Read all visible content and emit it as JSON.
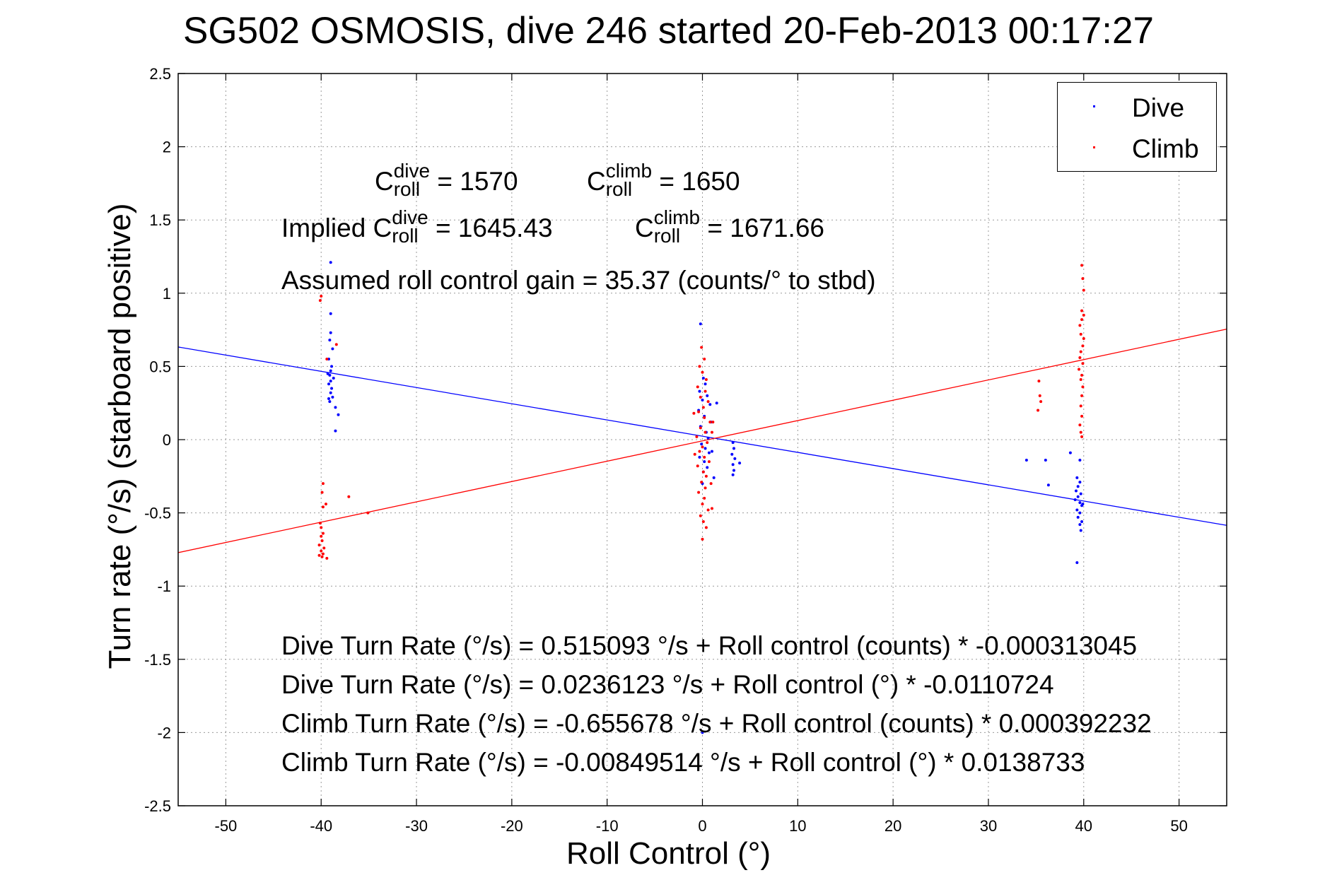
{
  "title": "SG502 OSMOSIS, dive 246 started 20-Feb-2013 00:17:27",
  "chart_data": {
    "type": "scatter",
    "xlabel": "Roll Control (°)",
    "ylabel": "Turn rate (°/s) (starboard positive)",
    "xlim": [
      -55,
      55
    ],
    "ylim": [
      -2.5,
      2.5
    ],
    "xticks": [
      -50,
      -40,
      -30,
      -20,
      -10,
      0,
      10,
      20,
      30,
      40,
      50
    ],
    "yticks": [
      -2.5,
      -2,
      -1.5,
      -1,
      -0.5,
      0,
      0.5,
      1,
      1.5,
      2,
      2.5
    ],
    "xtick_labels": [
      "-50",
      "-40",
      "-30",
      "-20",
      "-10",
      "0",
      "10",
      "20",
      "30",
      "40",
      "50"
    ],
    "ytick_labels": [
      "-2.5",
      "-2",
      "-1.5",
      "-1",
      "-0.5",
      "0",
      "0.5",
      "1",
      "1.5",
      "2",
      "2.5"
    ],
    "grid": true,
    "legend_position": "top-right",
    "series": [
      {
        "name": "Dive",
        "color": "#0000ff",
        "points": [
          [
            -39.0,
            1.21
          ],
          [
            -39.0,
            0.86
          ],
          [
            -39.0,
            0.73
          ],
          [
            -39.1,
            0.68
          ],
          [
            -38.8,
            0.62
          ],
          [
            -39.2,
            0.55
          ],
          [
            -38.9,
            0.5
          ],
          [
            -39.0,
            0.47
          ],
          [
            -39.1,
            0.44
          ],
          [
            -38.7,
            0.42
          ],
          [
            -39.0,
            0.4
          ],
          [
            -39.2,
            0.38
          ],
          [
            -38.9,
            0.35
          ],
          [
            -39.0,
            0.32
          ],
          [
            -38.8,
            0.29
          ],
          [
            -39.1,
            0.26
          ],
          [
            -38.5,
            0.22
          ],
          [
            -38.2,
            0.17
          ],
          [
            -38.5,
            0.06
          ],
          [
            -39.3,
            0.45
          ],
          [
            -39.2,
            0.28
          ],
          [
            -0.2,
            0.79
          ],
          [
            0.1,
            0.42
          ],
          [
            0.3,
            0.38
          ],
          [
            -0.3,
            0.33
          ],
          [
            0.5,
            0.3
          ],
          [
            0.0,
            0.27
          ],
          [
            0.8,
            0.24
          ],
          [
            -0.4,
            0.2
          ],
          [
            0.2,
            0.16
          ],
          [
            0.9,
            0.12
          ],
          [
            -0.2,
            0.09
          ],
          [
            0.4,
            0.05
          ],
          [
            0.6,
            0.01
          ],
          [
            -0.1,
            -0.03
          ],
          [
            0.3,
            -0.06
          ],
          [
            0.7,
            -0.09
          ],
          [
            -0.3,
            -0.12
          ],
          [
            0.2,
            -0.15
          ],
          [
            0.5,
            -0.19
          ],
          [
            0.1,
            -0.22
          ],
          [
            1.2,
            -0.26
          ],
          [
            0.0,
            -0.3
          ],
          [
            1.5,
            0.25
          ],
          [
            1.0,
            -0.08
          ],
          [
            3.2,
            -0.02
          ],
          [
            3.3,
            -0.06
          ],
          [
            3.1,
            -0.1
          ],
          [
            3.4,
            -0.13
          ],
          [
            3.2,
            -0.17
          ],
          [
            3.3,
            -0.21
          ],
          [
            3.2,
            -0.24
          ],
          [
            3.9,
            -0.16
          ],
          [
            0.0,
            -2.0
          ],
          [
            34.0,
            -0.14
          ],
          [
            36.0,
            -0.14
          ],
          [
            36.3,
            -0.31
          ],
          [
            38.6,
            -0.09
          ],
          [
            39.6,
            -0.14
          ],
          [
            39.3,
            -0.26
          ],
          [
            39.6,
            -0.29
          ],
          [
            39.4,
            -0.32
          ],
          [
            39.2,
            -0.35
          ],
          [
            39.7,
            -0.37
          ],
          [
            39.4,
            -0.39
          ],
          [
            39.1,
            -0.41
          ],
          [
            39.6,
            -0.43
          ],
          [
            39.8,
            -0.45
          ],
          [
            39.3,
            -0.48
          ],
          [
            39.6,
            -0.5
          ],
          [
            39.4,
            -0.53
          ],
          [
            39.8,
            -0.56
          ],
          [
            39.6,
            -0.58
          ],
          [
            39.7,
            -0.62
          ],
          [
            39.3,
            -0.84
          ],
          [
            39.9,
            -0.44
          ]
        ]
      },
      {
        "name": "Climb",
        "color": "#ff0000",
        "points": [
          [
            -40.0,
            0.98
          ],
          [
            -38.4,
            0.65
          ],
          [
            -40.1,
            0.95
          ],
          [
            -39.4,
            0.55
          ],
          [
            -39.8,
            -0.3
          ],
          [
            -39.9,
            -0.36
          ],
          [
            -39.5,
            -0.44
          ],
          [
            -39.8,
            -0.46
          ],
          [
            -37.1,
            -0.39
          ],
          [
            -35.1,
            -0.5
          ],
          [
            -40.1,
            -0.57
          ],
          [
            -40.0,
            -0.6
          ],
          [
            -39.8,
            -0.64
          ],
          [
            -40.0,
            -0.66
          ],
          [
            -39.9,
            -0.69
          ],
          [
            -40.2,
            -0.72
          ],
          [
            -39.7,
            -0.74
          ],
          [
            -40.0,
            -0.76
          ],
          [
            -39.8,
            -0.78
          ],
          [
            -39.9,
            -0.8
          ],
          [
            -39.4,
            -0.81
          ],
          [
            -40.2,
            -0.79
          ],
          [
            -0.1,
            0.63
          ],
          [
            0.2,
            0.55
          ],
          [
            -0.3,
            0.5
          ],
          [
            0.0,
            0.46
          ],
          [
            0.4,
            0.41
          ],
          [
            -0.5,
            0.36
          ],
          [
            0.3,
            0.33
          ],
          [
            -0.2,
            0.29
          ],
          [
            0.6,
            0.26
          ],
          [
            0.1,
            0.22
          ],
          [
            -0.4,
            0.19
          ],
          [
            0.2,
            0.15
          ],
          [
            0.8,
            0.12
          ],
          [
            -0.2,
            0.08
          ],
          [
            0.3,
            0.05
          ],
          [
            -0.6,
            0.02
          ],
          [
            0.5,
            -0.02
          ],
          [
            0.0,
            -0.05
          ],
          [
            -0.3,
            -0.08
          ],
          [
            0.2,
            -0.12
          ],
          [
            0.7,
            -0.15
          ],
          [
            -0.5,
            -0.18
          ],
          [
            0.1,
            -0.22
          ],
          [
            0.4,
            -0.25
          ],
          [
            -0.1,
            -0.29
          ],
          [
            0.3,
            -0.33
          ],
          [
            -0.4,
            -0.36
          ],
          [
            0.2,
            -0.4
          ],
          [
            0.0,
            -0.44
          ],
          [
            0.6,
            -0.48
          ],
          [
            -0.2,
            -0.52
          ],
          [
            0.1,
            -0.56
          ],
          [
            0.4,
            -0.6
          ],
          [
            0.0,
            -0.68
          ],
          [
            1.0,
            -0.47
          ],
          [
            1.1,
            0.12
          ],
          [
            1.0,
            0.05
          ],
          [
            -0.8,
            -0.1
          ],
          [
            -0.9,
            0.18
          ],
          [
            0.9,
            -0.3
          ],
          [
            35.3,
            0.4
          ],
          [
            35.4,
            0.3
          ],
          [
            35.2,
            0.2
          ],
          [
            35.5,
            0.26
          ],
          [
            39.8,
            1.19
          ],
          [
            39.9,
            1.1
          ],
          [
            40.0,
            1.02
          ],
          [
            39.8,
            0.88
          ],
          [
            40.0,
            0.85
          ],
          [
            39.8,
            0.82
          ],
          [
            39.6,
            0.78
          ],
          [
            39.7,
            0.72
          ],
          [
            40.0,
            0.69
          ],
          [
            39.9,
            0.64
          ],
          [
            39.7,
            0.6
          ],
          [
            39.6,
            0.56
          ],
          [
            39.9,
            0.52
          ],
          [
            39.5,
            0.48
          ],
          [
            39.8,
            0.44
          ],
          [
            39.7,
            0.41
          ],
          [
            39.9,
            0.36
          ],
          [
            39.8,
            0.3
          ],
          [
            39.7,
            0.23
          ],
          [
            39.8,
            0.16
          ],
          [
            39.6,
            0.1
          ],
          [
            39.7,
            0.05
          ],
          [
            39.8,
            0.02
          ]
        ]
      }
    ],
    "fit_lines": [
      {
        "name": "Dive fit",
        "color": "#0000ff",
        "intercept": 0.0236123,
        "slope": -0.0110724
      },
      {
        "name": "Climb fit",
        "color": "#ff0000",
        "intercept": -0.00849514,
        "slope": 0.0138733
      }
    ]
  },
  "annotations": {
    "croll_symbol": "C",
    "croll_sub": "roll",
    "dive_sup": "dive",
    "climb_sup": "climb",
    "croll_dive_value": "= 1570",
    "croll_climb_value": "= 1650",
    "implied_prefix": "Implied",
    "implied_dive_value": "= 1645.43",
    "implied_climb_value": "= 1671.66",
    "gain": "Assumed roll control gain = 35.37 (counts/° to stbd)",
    "eq1": "Dive Turn Rate (°/s) = 0.515093 °/s + Roll control (counts) * -0.000313045",
    "eq2": "Dive Turn Rate (°/s) = 0.0236123 °/s + Roll control (°) * -0.0110724",
    "eq3": "Climb Turn Rate (°/s) = -0.655678 °/s + Roll control (counts) * 0.000392232",
    "eq4": "Climb Turn Rate (°/s) = -0.00849514 °/s + Roll control (°) * 0.0138733"
  },
  "legend": {
    "items": [
      "Dive",
      "Climb"
    ]
  }
}
